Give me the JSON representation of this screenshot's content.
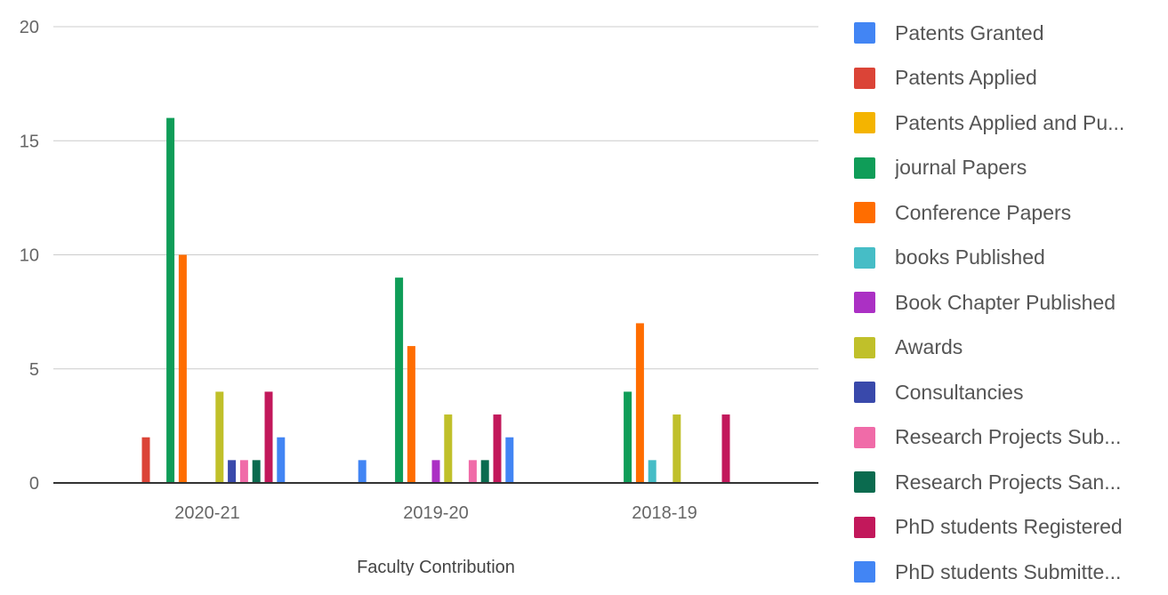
{
  "chart_data": {
    "type": "bar",
    "title": "",
    "xlabel": "Faculty Contribution",
    "ylabel": "",
    "ylim": [
      0,
      20
    ],
    "yticks": [
      "0",
      "5",
      "10",
      "15",
      "20"
    ],
    "grid": true,
    "legend_position": "right",
    "categories": [
      "2020-21",
      "2019-20",
      "2018-19"
    ],
    "series": [
      {
        "name": "Patents Granted",
        "color": "#4285f4",
        "values": [
          0,
          1,
          0
        ]
      },
      {
        "name": "Patents Applied",
        "color": "#db4437",
        "values": [
          2,
          0,
          0
        ]
      },
      {
        "name": "Patents Applied and Pu...",
        "color": "#f4b400",
        "values": [
          0,
          0,
          0
        ]
      },
      {
        "name": "journal Papers",
        "color": "#0f9d58",
        "values": [
          16,
          9,
          4
        ]
      },
      {
        "name": "Conference Papers",
        "color": "#ff6d00",
        "values": [
          10,
          6,
          7
        ]
      },
      {
        "name": "books Published",
        "color": "#46bdc6",
        "values": [
          0,
          0,
          1
        ]
      },
      {
        "name": "Book Chapter Published",
        "color": "#ab30c4",
        "values": [
          0,
          1,
          0
        ]
      },
      {
        "name": "Awards",
        "color": "#c0c02a",
        "values": [
          4,
          3,
          3
        ]
      },
      {
        "name": "Consultancies",
        "color": "#3949ab",
        "values": [
          1,
          0,
          0
        ]
      },
      {
        "name": "Research Projects Sub...",
        "color": "#f06ba8",
        "values": [
          1,
          1,
          0
        ]
      },
      {
        "name": "Research Projects San...",
        "color": "#0b6b4f",
        "values": [
          1,
          1,
          0
        ]
      },
      {
        "name": "PhD students Registered",
        "color": "#c2185b",
        "values": [
          4,
          3,
          3
        ]
      },
      {
        "name": "PhD students Submitte...",
        "color": "#4285f4",
        "values": [
          2,
          2,
          0
        ]
      }
    ]
  }
}
